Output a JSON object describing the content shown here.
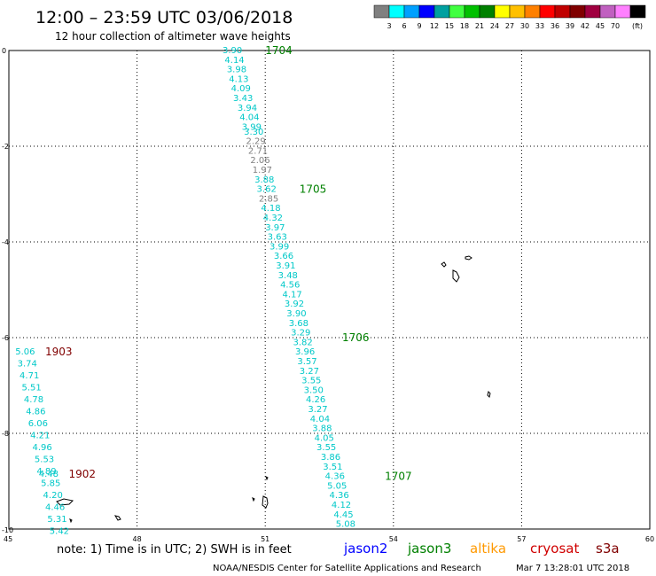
{
  "header": {
    "title": "12:00 – 23:59 UTC 03/06/2018",
    "subtitle": "12 hour collection of altimeter wave heights"
  },
  "legend": {
    "colors": [
      "#808080",
      "#00ffff",
      "#00a0ff",
      "#0000ff",
      "#00a0a0",
      "#40ff40",
      "#00c000",
      "#008000",
      "#ffff00",
      "#ffc000",
      "#ff8000",
      "#ff0000",
      "#c00000",
      "#800000",
      "#a00040",
      "#c060c0",
      "#ff80ff",
      "#000000"
    ],
    "labels": [
      "3",
      "6",
      "9",
      "12",
      "15",
      "18",
      "21",
      "24",
      "27",
      "30",
      "33",
      "36",
      "39",
      "42",
      "45",
      "70"
    ],
    "unit": "(ft)"
  },
  "chart_data": {
    "type": "map",
    "xlim": [
      45,
      60
    ],
    "ylim": [
      -10,
      0
    ],
    "x_ticks": [
      "45",
      "48",
      "51",
      "54",
      "57",
      "60"
    ],
    "y_ticks": [
      "0",
      "-2",
      "-4",
      "-6",
      "-8",
      "-10"
    ],
    "grid": true,
    "tracks": [
      {
        "labels": [
          {
            "text": "1704",
            "lon": 51.0,
            "lat": 0.0,
            "color": "#008000"
          },
          {
            "text": "1705",
            "lon": 51.8,
            "lat": -2.9,
            "color": "#008000"
          },
          {
            "text": "1706",
            "lon": 52.8,
            "lat": -6.0,
            "color": "#008000"
          },
          {
            "text": "1707",
            "lon": 53.8,
            "lat": -8.9,
            "color": "#008000"
          }
        ],
        "points": [
          {
            "v": "3.90",
            "lon": 50.0,
            "lat": 0.0,
            "c": "#00c8c8"
          },
          {
            "v": "4.14",
            "lon": 50.05,
            "lat": -0.2,
            "c": "#00c8c8"
          },
          {
            "v": "3.98",
            "lon": 50.1,
            "lat": -0.4,
            "c": "#00c8c8"
          },
          {
            "v": "4.13",
            "lon": 50.15,
            "lat": -0.6,
            "c": "#00c8c8"
          },
          {
            "v": "4.09",
            "lon": 50.2,
            "lat": -0.8,
            "c": "#00c8c8"
          },
          {
            "v": "3.43",
            "lon": 50.25,
            "lat": -1.0,
            "c": "#00c8c8"
          },
          {
            "v": "3.94",
            "lon": 50.35,
            "lat": -1.2,
            "c": "#00c8c8"
          },
          {
            "v": "4.04",
            "lon": 50.4,
            "lat": -1.4,
            "c": "#00c8c8"
          },
          {
            "v": "3.99",
            "lon": 50.45,
            "lat": -1.6,
            "c": "#00c8c8"
          },
          {
            "v": "3.30",
            "lon": 50.5,
            "lat": -1.7,
            "c": "#00c8c8"
          },
          {
            "v": "2.29",
            "lon": 50.55,
            "lat": -1.9,
            "c": "#808080"
          },
          {
            "v": "2.71",
            "lon": 50.6,
            "lat": -2.1,
            "c": "#808080"
          },
          {
            "v": "2.06",
            "lon": 50.65,
            "lat": -2.3,
            "c": "#808080"
          },
          {
            "v": "1.97",
            "lon": 50.7,
            "lat": -2.5,
            "c": "#808080"
          },
          {
            "v": "3.88",
            "lon": 50.75,
            "lat": -2.7,
            "c": "#00c8c8"
          },
          {
            "v": "3.62",
            "lon": 50.8,
            "lat": -2.9,
            "c": "#00c8c8"
          },
          {
            "v": "2.85",
            "lon": 50.85,
            "lat": -3.1,
            "c": "#808080"
          },
          {
            "v": "4.18",
            "lon": 50.9,
            "lat": -3.3,
            "c": "#00c8c8"
          },
          {
            "v": "4.32",
            "lon": 50.95,
            "lat": -3.5,
            "c": "#00c8c8"
          },
          {
            "v": "3.97",
            "lon": 51.0,
            "lat": -3.7,
            "c": "#00c8c8"
          },
          {
            "v": "3.63",
            "lon": 51.05,
            "lat": -3.9,
            "c": "#00c8c8"
          },
          {
            "v": "3.99",
            "lon": 51.1,
            "lat": -4.1,
            "c": "#00c8c8"
          },
          {
            "v": "3.66",
            "lon": 51.2,
            "lat": -4.3,
            "c": "#00c8c8"
          },
          {
            "v": "3.91",
            "lon": 51.25,
            "lat": -4.5,
            "c": "#00c8c8"
          },
          {
            "v": "3.48",
            "lon": 51.3,
            "lat": -4.7,
            "c": "#00c8c8"
          },
          {
            "v": "4.56",
            "lon": 51.35,
            "lat": -4.9,
            "c": "#00c8c8"
          },
          {
            "v": "4.17",
            "lon": 51.4,
            "lat": -5.1,
            "c": "#00c8c8"
          },
          {
            "v": "3.92",
            "lon": 51.45,
            "lat": -5.3,
            "c": "#00c8c8"
          },
          {
            "v": "3.90",
            "lon": 51.5,
            "lat": -5.5,
            "c": "#00c8c8"
          },
          {
            "v": "3.68",
            "lon": 51.55,
            "lat": -5.7,
            "c": "#00c8c8"
          },
          {
            "v": "3.29",
            "lon": 51.6,
            "lat": -5.9,
            "c": "#00c8c8"
          },
          {
            "v": "3.82",
            "lon": 51.65,
            "lat": -6.1,
            "c": "#00c8c8"
          },
          {
            "v": "3.96",
            "lon": 51.7,
            "lat": -6.3,
            "c": "#00c8c8"
          },
          {
            "v": "3.57",
            "lon": 51.75,
            "lat": -6.5,
            "c": "#00c8c8"
          },
          {
            "v": "3.27",
            "lon": 51.8,
            "lat": -6.7,
            "c": "#00c8c8"
          },
          {
            "v": "3.55",
            "lon": 51.85,
            "lat": -6.9,
            "c": "#00c8c8"
          },
          {
            "v": "3.50",
            "lon": 51.9,
            "lat": -7.1,
            "c": "#00c8c8"
          },
          {
            "v": "4.26",
            "lon": 51.95,
            "lat": -7.3,
            "c": "#00c8c8"
          },
          {
            "v": "3.27",
            "lon": 52.0,
            "lat": -7.5,
            "c": "#00c8c8"
          },
          {
            "v": "4.04",
            "lon": 52.05,
            "lat": -7.7,
            "c": "#00c8c8"
          },
          {
            "v": "3.88",
            "lon": 52.1,
            "lat": -7.9,
            "c": "#00c8c8"
          },
          {
            "v": "4.05",
            "lon": 52.15,
            "lat": -8.1,
            "c": "#00c8c8"
          },
          {
            "v": "3.55",
            "lon": 52.2,
            "lat": -8.3,
            "c": "#00c8c8"
          },
          {
            "v": "3.86",
            "lon": 52.3,
            "lat": -8.5,
            "c": "#00c8c8"
          },
          {
            "v": "3.51",
            "lon": 52.35,
            "lat": -8.7,
            "c": "#00c8c8"
          },
          {
            "v": "4.36",
            "lon": 52.4,
            "lat": -8.9,
            "c": "#00c8c8"
          },
          {
            "v": "5.05",
            "lon": 52.45,
            "lat": -9.1,
            "c": "#00c8c8"
          },
          {
            "v": "4.36",
            "lon": 52.5,
            "lat": -9.3,
            "c": "#00c8c8"
          },
          {
            "v": "4.12",
            "lon": 52.55,
            "lat": -9.5,
            "c": "#00c8c8"
          },
          {
            "v": "4.45",
            "lon": 52.6,
            "lat": -9.7,
            "c": "#00c8c8"
          },
          {
            "v": "5.08",
            "lon": 52.65,
            "lat": -9.9,
            "c": "#00c8c8"
          }
        ]
      },
      {
        "labels": [
          {
            "text": "1903",
            "lon": 45.85,
            "lat": -6.3,
            "color": "#800000"
          },
          {
            "text": "1902",
            "lon": 46.4,
            "lat": -8.85,
            "color": "#800000"
          }
        ],
        "points": [
          {
            "v": "5.06",
            "lon": 45.15,
            "lat": -6.3,
            "c": "#00c8c8"
          },
          {
            "v": "3.74",
            "lon": 45.2,
            "lat": -6.55,
            "c": "#00c8c8"
          },
          {
            "v": "4.71",
            "lon": 45.25,
            "lat": -6.8,
            "c": "#00c8c8"
          },
          {
            "v": "5.51",
            "lon": 45.3,
            "lat": -7.05,
            "c": "#00c8c8"
          },
          {
            "v": "4.78",
            "lon": 45.35,
            "lat": -7.3,
            "c": "#00c8c8"
          },
          {
            "v": "4.86",
            "lon": 45.4,
            "lat": -7.55,
            "c": "#00c8c8"
          },
          {
            "v": "6.06",
            "lon": 45.45,
            "lat": -7.8,
            "c": "#00c8c8"
          },
          {
            "v": "4.21",
            "lon": 45.5,
            "lat": -8.05,
            "c": "#00c8c8"
          },
          {
            "v": "4.96",
            "lon": 45.55,
            "lat": -8.3,
            "c": "#00c8c8"
          },
          {
            "v": "5.53",
            "lon": 45.6,
            "lat": -8.55,
            "c": "#00c8c8"
          },
          {
            "v": "4.89",
            "lon": 45.65,
            "lat": -8.8,
            "c": "#00c8c8"
          },
          {
            "v": "4.48",
            "lon": 45.7,
            "lat": -8.85,
            "c": "#00c8c8"
          },
          {
            "v": "5.85",
            "lon": 45.75,
            "lat": -9.05,
            "c": "#00c8c8"
          },
          {
            "v": "4.20",
            "lon": 45.8,
            "lat": -9.3,
            "c": "#00c8c8"
          },
          {
            "v": "4.46",
            "lon": 45.85,
            "lat": -9.55,
            "c": "#00c8c8"
          },
          {
            "v": "5.31",
            "lon": 45.9,
            "lat": -9.8,
            "c": "#00c8c8"
          },
          {
            "v": "5.42",
            "lon": 45.95,
            "lat": -10.05,
            "c": "#00c8c8"
          }
        ]
      }
    ]
  },
  "footer": {
    "note": "note:  1) Time is in UTC;  2) SWH is in feet",
    "satellites": [
      {
        "name": "jason2",
        "color": "#0000ff"
      },
      {
        "name": "jason3",
        "color": "#008000"
      },
      {
        "name": "altika",
        "color": "#ff9900"
      },
      {
        "name": "cryosat",
        "color": "#d00000"
      },
      {
        "name": "s3a",
        "color": "#800000"
      }
    ],
    "credit": "NOAA/NESDIS Center for Satellite Applications and Research",
    "timestamp": "Mar  7 13:28:01 UTC 2018"
  }
}
